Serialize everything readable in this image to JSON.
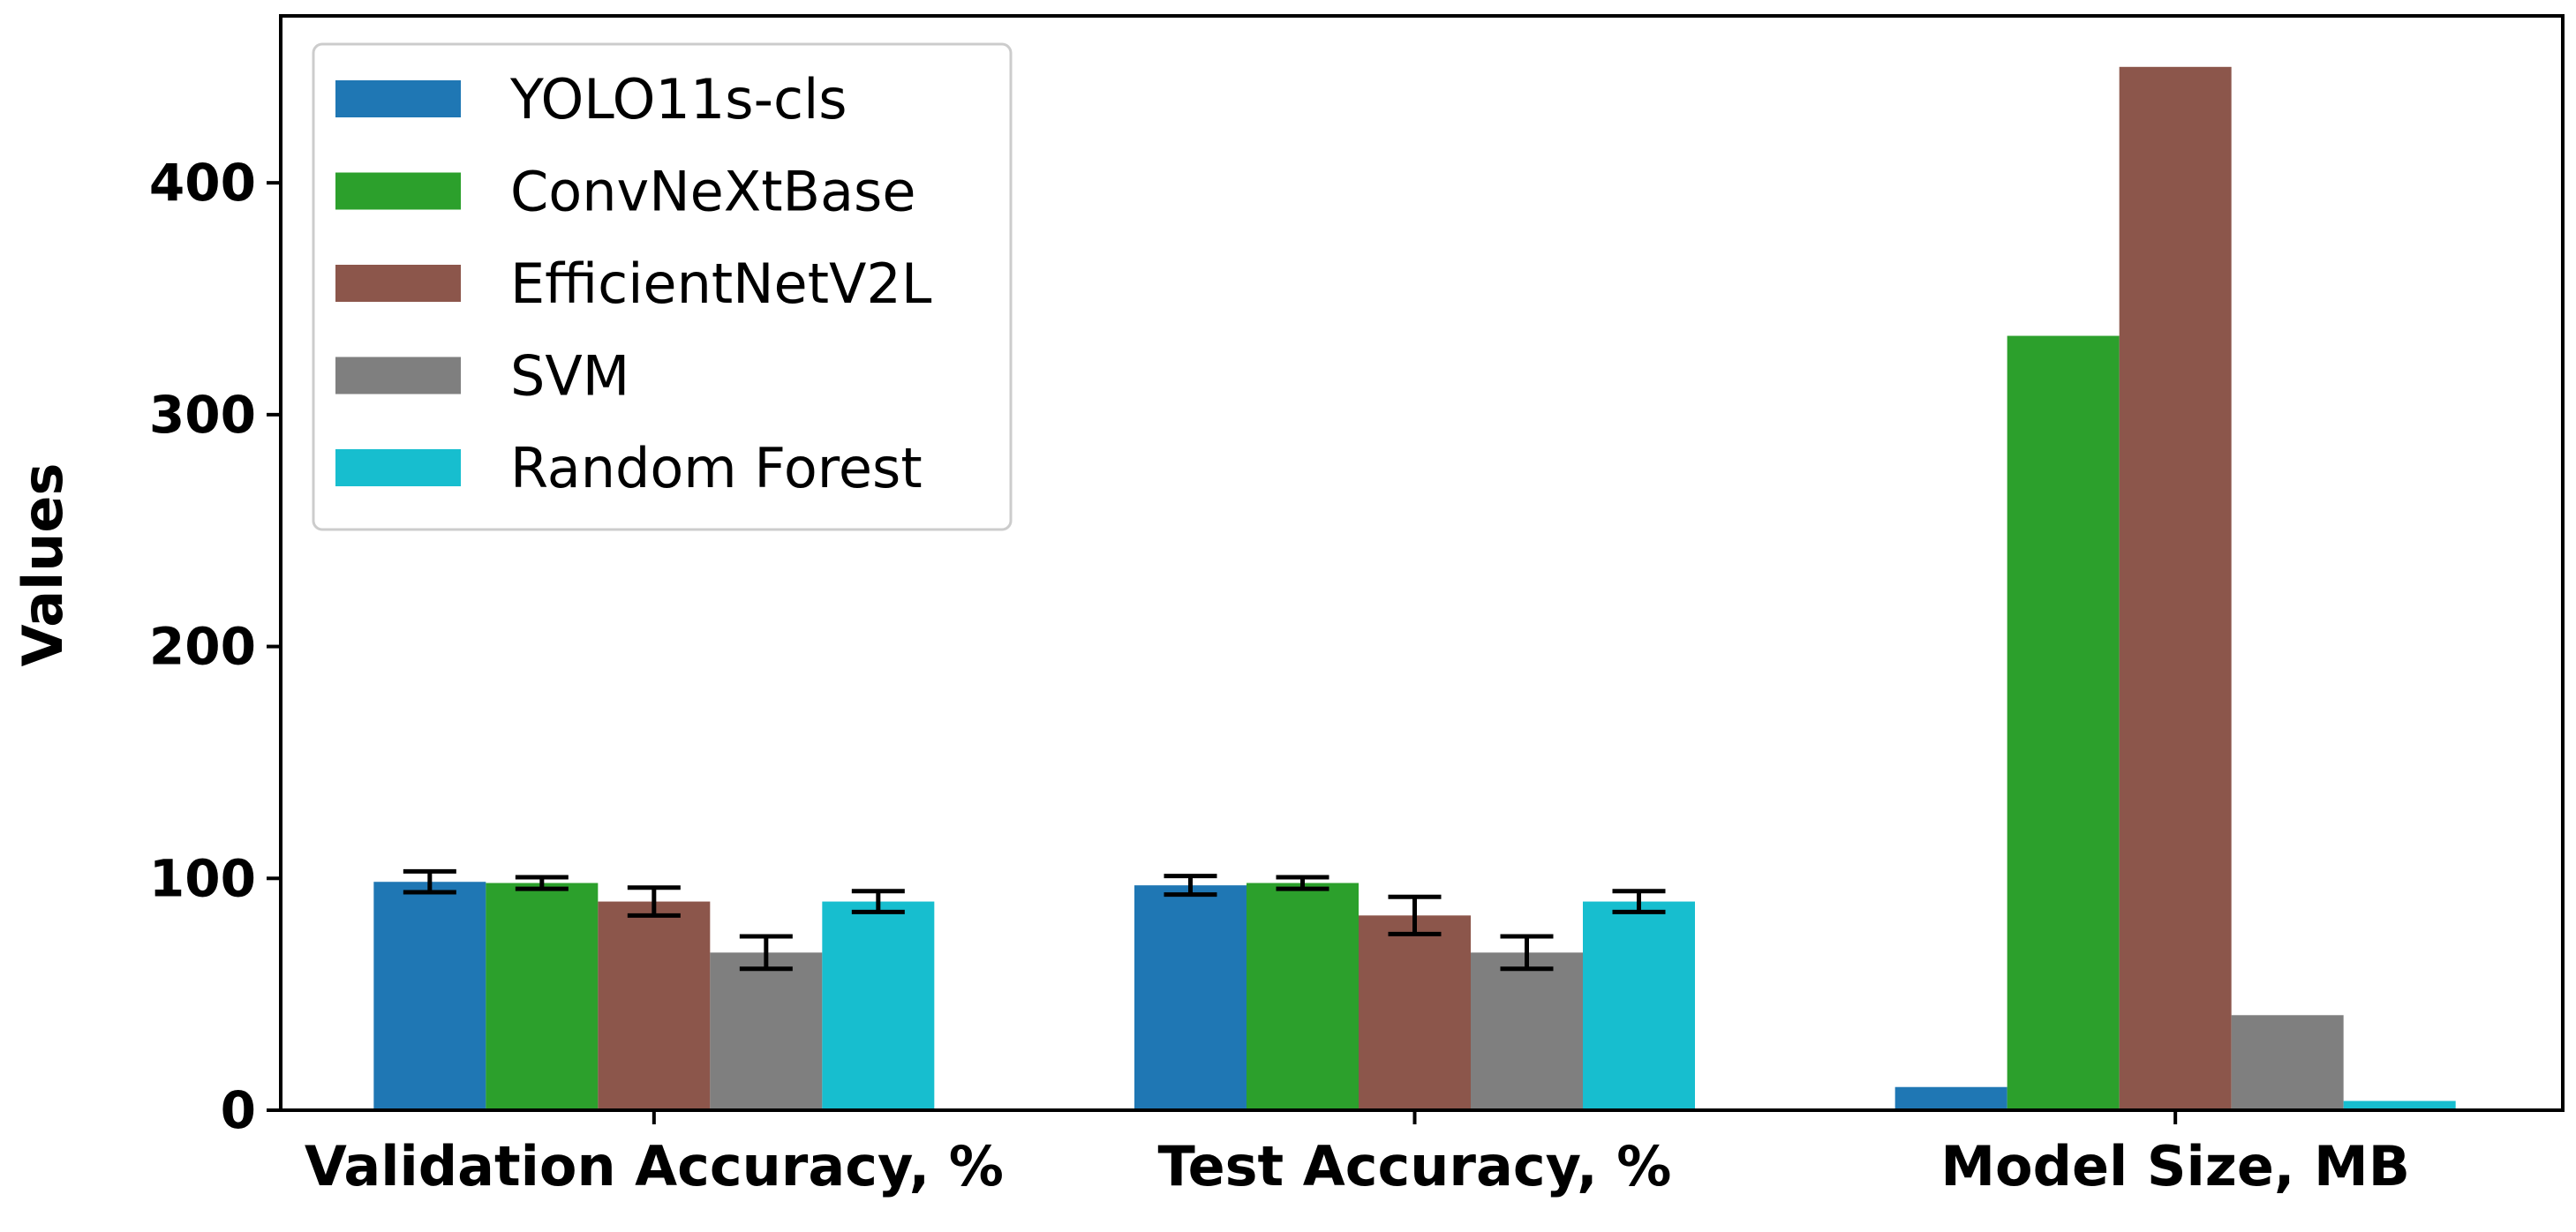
{
  "chart_data": {
    "type": "bar",
    "title": "",
    "xlabel": "",
    "ylabel": "Values",
    "categories": [
      "Validation Accuracy, %",
      "Test Accuracy, %",
      "Model Size, MB"
    ],
    "series": [
      {
        "name": "YOLO11s-cls",
        "color": "#1f77b4",
        "values": [
          98.5,
          97.0,
          10.0
        ],
        "errors": [
          4.5,
          4.0,
          null
        ]
      },
      {
        "name": "ConvNeXtBase",
        "color": "#2ca02c",
        "values": [
          98.0,
          98.0,
          334.0
        ],
        "errors": [
          2.5,
          2.5,
          null
        ]
      },
      {
        "name": "EfficientNetV2L",
        "color": "#8c564b",
        "values": [
          90.0,
          84.0,
          450.0
        ],
        "errors": [
          6.0,
          8.0,
          null
        ]
      },
      {
        "name": "SVM",
        "color": "#7f7f7f",
        "values": [
          68.0,
          68.0,
          41.0
        ],
        "errors": [
          7.0,
          7.0,
          null
        ]
      },
      {
        "name": "Random Forest",
        "color": "#17becf",
        "values": [
          90.0,
          90.0,
          4.0
        ],
        "errors": [
          4.5,
          4.5,
          null
        ]
      }
    ],
    "ylim": [
      0,
      472
    ],
    "yticks": [
      0,
      100,
      200,
      300,
      400
    ],
    "grid": false,
    "legend_position": "top-left"
  }
}
